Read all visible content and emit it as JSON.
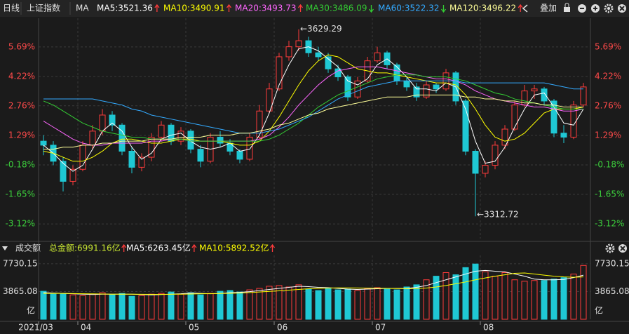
{
  "chart_data": [
    {
      "type": "candlestick",
      "period": "日线",
      "title": "上证指数",
      "indicator": "MA",
      "overlay_button": "叠加",
      "up_color": "#ff3b3b",
      "down_color": "#1fc8d4",
      "categories": [
        "2021/03",
        null,
        null,
        null,
        "04",
        null,
        null,
        null,
        null,
        null,
        null,
        null,
        null,
        null,
        null,
        "05",
        null,
        null,
        null,
        null,
        null,
        null,
        null,
        null,
        "06",
        null,
        null,
        null,
        null,
        null,
        null,
        null,
        null,
        null,
        "07",
        null,
        null,
        null,
        null,
        null,
        null,
        null,
        null,
        null,
        null,
        "08",
        null,
        null,
        null,
        null,
        null,
        null,
        null,
        null,
        null,
        null
      ],
      "open": [
        1.0,
        0.8,
        0.0,
        -1.0,
        -0.4,
        0.8,
        1.5,
        2.3,
        1.8,
        0.5,
        -0.3,
        0.2,
        1.2,
        1.8,
        1.0,
        1.5,
        0.6,
        0.0,
        1.2,
        0.9,
        0.5,
        0.1,
        1.2,
        2.5,
        3.6,
        5.2,
        5.7,
        6.0,
        5.4,
        5.2,
        4.6,
        4.2,
        3.2,
        4.0,
        5.0,
        5.4,
        4.8,
        4.0,
        3.7,
        3.2,
        3.8,
        3.6,
        4.4,
        3.0,
        0.5,
        -0.6,
        -0.2,
        0.8,
        1.6,
        2.8,
        3.5,
        3.6,
        3.0,
        1.4,
        1.2,
        2.8
      ],
      "high": [
        1.3,
        1.0,
        0.2,
        -0.2,
        1.0,
        1.8,
        2.6,
        2.5,
        1.9,
        0.7,
        0.4,
        1.4,
        2.0,
        1.9,
        1.7,
        1.6,
        0.8,
        1.4,
        1.5,
        1.1,
        0.6,
        1.4,
        2.8,
        3.9,
        5.4,
        6.0,
        6.57,
        6.2,
        5.7,
        5.4,
        4.8,
        4.3,
        4.2,
        5.2,
        5.7,
        5.5,
        4.9,
        4.2,
        3.9,
        4.0,
        3.9,
        4.6,
        4.5,
        3.1,
        0.6,
        0.0,
        1.0,
        1.8,
        3.0,
        3.8,
        3.8,
        3.7,
        3.1,
        1.8,
        3.0,
        3.9
      ],
      "low": [
        0.3,
        -0.2,
        -1.5,
        -1.2,
        -0.5,
        0.6,
        1.3,
        1.5,
        0.3,
        -0.6,
        -0.5,
        0.0,
        1.0,
        0.8,
        0.8,
        0.4,
        -0.3,
        -0.1,
        0.7,
        0.3,
        -0.1,
        0.0,
        1.1,
        2.4,
        3.5,
        5.0,
        5.5,
        5.2,
        5.0,
        4.4,
        4.0,
        3.0,
        3.1,
        3.9,
        4.9,
        4.6,
        3.8,
        3.5,
        3.0,
        3.1,
        3.4,
        3.5,
        2.8,
        0.3,
        -2.74,
        -0.8,
        -0.4,
        0.6,
        1.5,
        2.7,
        3.1,
        2.8,
        1.2,
        0.9,
        1.1,
        2.7
      ],
      "close": [
        0.8,
        0.0,
        -1.0,
        -0.4,
        0.8,
        1.5,
        2.3,
        1.8,
        0.5,
        -0.3,
        0.2,
        1.2,
        1.8,
        1.0,
        1.5,
        0.6,
        0.0,
        1.2,
        0.9,
        0.5,
        0.1,
        1.2,
        2.5,
        3.6,
        5.2,
        5.7,
        6.0,
        5.4,
        5.2,
        4.6,
        4.2,
        3.2,
        4.0,
        5.0,
        5.4,
        4.8,
        4.0,
        3.7,
        3.2,
        3.8,
        3.6,
        4.4,
        3.0,
        0.5,
        -0.6,
        -0.2,
        0.8,
        1.6,
        2.8,
        3.5,
        3.6,
        3.0,
        1.4,
        1.2,
        2.8,
        3.7
      ],
      "series": [
        {
          "name": "MA5:3521.36",
          "color": "#ffffff",
          "trend": "up",
          "values": [
            0.8,
            0.4,
            -0.1,
            -0.5,
            -0.2,
            0.6,
            1.5,
            1.9,
            1.5,
            0.7,
            0.1,
            0.4,
            1.1,
            1.3,
            1.4,
            1.0,
            0.7,
            0.6,
            0.7,
            0.9,
            0.5,
            0.6,
            1.3,
            2.4,
            3.8,
            4.8,
            5.6,
            5.7,
            5.5,
            5.1,
            4.7,
            4.0,
            3.8,
            4.1,
            4.8,
            5.1,
            4.7,
            4.2,
            3.6,
            3.6,
            3.5,
            3.9,
            3.7,
            2.6,
            1.0,
            -0.1,
            0.0,
            0.7,
            1.7,
            2.6,
            3.3,
            3.4,
            2.7,
            1.9,
            1.8,
            2.6
          ]
        },
        {
          "name": "MA10:3490.91",
          "color": "#ffff00",
          "trend": "up",
          "values": [
            0.5,
            0.4,
            0.2,
            0.0,
            0.0,
            0.2,
            0.5,
            0.9,
            1.1,
            1.1,
            1.0,
            0.9,
            0.9,
            1.0,
            1.1,
            1.1,
            1.0,
            1.0,
            1.0,
            0.9,
            0.8,
            0.8,
            1.0,
            1.5,
            2.2,
            3.0,
            3.8,
            4.5,
            5.0,
            5.3,
            5.2,
            4.9,
            4.6,
            4.5,
            4.4,
            4.4,
            4.3,
            4.2,
            4.1,
            4.0,
            3.9,
            3.9,
            3.8,
            3.3,
            2.6,
            1.8,
            1.2,
            1.0,
            1.1,
            1.4,
            1.9,
            2.4,
            2.6,
            2.6,
            2.6,
            2.7
          ]
        },
        {
          "name": "MA20:3493.73",
          "color": "#ff66ff",
          "trend": "up",
          "values": [
            2.0,
            1.7,
            1.4,
            1.1,
            0.9,
            0.8,
            0.8,
            0.9,
            0.9,
            0.9,
            0.9,
            1.0,
            1.0,
            1.1,
            1.1,
            1.0,
            1.0,
            1.0,
            1.0,
            1.0,
            1.0,
            1.0,
            1.1,
            1.3,
            1.7,
            2.2,
            2.8,
            3.3,
            3.8,
            4.2,
            4.5,
            4.6,
            4.7,
            4.7,
            4.7,
            4.6,
            4.5,
            4.4,
            4.3,
            4.2,
            4.1,
            4.1,
            4.0,
            3.8,
            3.5,
            3.3,
            3.1,
            3.0,
            2.9,
            2.8,
            2.7,
            2.7,
            2.6,
            2.5,
            2.5,
            2.6
          ]
        },
        {
          "name": "MA30:3486.09",
          "color": "#33cc33",
          "trend": "down",
          "values": [
            3.0,
            2.8,
            2.5,
            2.2,
            1.9,
            1.7,
            1.5,
            1.4,
            1.3,
            1.2,
            1.2,
            1.1,
            1.1,
            1.1,
            1.1,
            1.0,
            1.0,
            1.0,
            1.0,
            1.0,
            1.0,
            1.0,
            1.0,
            1.1,
            1.3,
            1.6,
            1.9,
            2.3,
            2.7,
            3.0,
            3.3,
            3.5,
            3.7,
            3.9,
            4.1,
            4.2,
            4.3,
            4.3,
            4.3,
            4.2,
            4.2,
            4.2,
            4.1,
            4.0,
            3.8,
            3.6,
            3.4,
            3.3,
            3.1,
            3.0,
            2.9,
            2.8,
            2.7,
            2.6,
            2.6,
            2.6
          ]
        },
        {
          "name": "MA60:3522.32",
          "color": "#33aaff",
          "trend": "down",
          "values": [
            3.1,
            3.1,
            3.1,
            3.1,
            3.1,
            3.1,
            3.0,
            2.9,
            2.8,
            2.6,
            2.5,
            2.3,
            2.2,
            2.1,
            2.0,
            1.9,
            1.8,
            1.7,
            1.6,
            1.5,
            1.4,
            1.4,
            1.4,
            1.5,
            1.6,
            1.8,
            2.0,
            2.2,
            2.5,
            2.8,
            3.1,
            3.3,
            3.5,
            3.7,
            3.8,
            3.9,
            4.0,
            4.0,
            4.0,
            4.0,
            4.0,
            4.0,
            4.0,
            3.9,
            3.9,
            3.9,
            3.9,
            3.9,
            3.9,
            3.9,
            3.9,
            3.9,
            3.8,
            3.7,
            3.6,
            3.6
          ]
        },
        {
          "name": "MA120:3496.22",
          "color": "#ffff99",
          "trend": "up",
          "values": [
            0.6,
            0.6,
            0.7,
            0.7,
            0.8,
            0.8,
            0.9,
            0.9,
            1.0,
            1.0,
            1.0,
            1.1,
            1.1,
            1.1,
            1.2,
            1.2,
            1.2,
            1.3,
            1.3,
            1.3,
            1.4,
            1.4,
            1.5,
            1.6,
            1.8,
            1.9,
            2.1,
            2.3,
            2.4,
            2.6,
            2.7,
            2.8,
            2.9,
            3.0,
            3.1,
            3.2,
            3.2,
            3.2,
            3.3,
            3.3,
            3.3,
            3.3,
            3.3,
            3.2,
            3.2,
            3.1,
            3.1,
            3.0,
            3.0,
            2.9,
            2.9,
            2.8,
            2.8,
            2.7,
            2.7,
            2.7
          ]
        }
      ],
      "annotations": [
        {
          "text": "←3629.29"
        },
        {
          "text": "←3312.72"
        }
      ],
      "ylim": [
        -3.85,
        6.98
      ],
      "yticks": [
        {
          "value": 5.69,
          "label": "5.69%"
        },
        {
          "value": 4.22,
          "label": "4.22%"
        },
        {
          "value": 2.76,
          "label": "2.76%"
        },
        {
          "value": 1.29,
          "label": "1.29%"
        },
        {
          "value": -0.18,
          "label": "-0.18%"
        },
        {
          "value": -1.65,
          "label": "-1.65%"
        },
        {
          "value": -3.12,
          "label": "-3.12%"
        }
      ],
      "grid": true
    },
    {
      "type": "bar",
      "title": "成交额",
      "total": "总金额:6991.16亿",
      "unit": "亿",
      "values": [
        3900,
        3500,
        3600,
        3400,
        3300,
        3500,
        3700,
        3400,
        3600,
        3200,
        3300,
        3500,
        3600,
        3800,
        3500,
        3700,
        3400,
        3600,
        3900,
        4000,
        3800,
        4100,
        4300,
        4600,
        4700,
        4500,
        4800,
        4200,
        4000,
        4300,
        4100,
        4200,
        4000,
        4300,
        4400,
        4300,
        4100,
        4500,
        4800,
        5500,
        6000,
        6500,
        6200,
        7200,
        7700,
        6600,
        6000,
        6500,
        5500,
        5300,
        5400,
        5400,
        5600,
        5800,
        6300,
        7500
      ],
      "series": [
        {
          "name": "MA5:6263.45亿",
          "color": "#ffffff",
          "trend": "up",
          "values": [
            3700,
            3650,
            3600,
            3550,
            3500,
            3450,
            3500,
            3500,
            3500,
            3500,
            3450,
            3400,
            3450,
            3500,
            3550,
            3650,
            3600,
            3550,
            3600,
            3700,
            3750,
            3850,
            4000,
            4150,
            4300,
            4450,
            4600,
            4550,
            4450,
            4400,
            4300,
            4200,
            4150,
            4200,
            4250,
            4300,
            4300,
            4300,
            4450,
            4700,
            5100,
            5500,
            5900,
            6300,
            6700,
            6800,
            6700,
            6600,
            6300,
            6000,
            5600,
            5500,
            5500,
            5550,
            5800,
            6150
          ]
        },
        {
          "name": "MA10:5892.52亿",
          "color": "#ffff00",
          "trend": "up",
          "values": [
            3600,
            3600,
            3600,
            3580,
            3560,
            3540,
            3520,
            3500,
            3500,
            3500,
            3480,
            3470,
            3470,
            3480,
            3500,
            3520,
            3550,
            3570,
            3590,
            3620,
            3650,
            3720,
            3800,
            3880,
            3960,
            4060,
            4150,
            4250,
            4300,
            4350,
            4380,
            4380,
            4360,
            4340,
            4320,
            4300,
            4280,
            4270,
            4280,
            4350,
            4500,
            4700,
            4950,
            5200,
            5500,
            5750,
            6000,
            6200,
            6400,
            6450,
            6300,
            6150,
            6000,
            5900,
            5850,
            5900
          ]
        }
      ],
      "ylim": [
        0,
        8700
      ],
      "yticks": [
        7730.15,
        3865.08
      ]
    }
  ]
}
